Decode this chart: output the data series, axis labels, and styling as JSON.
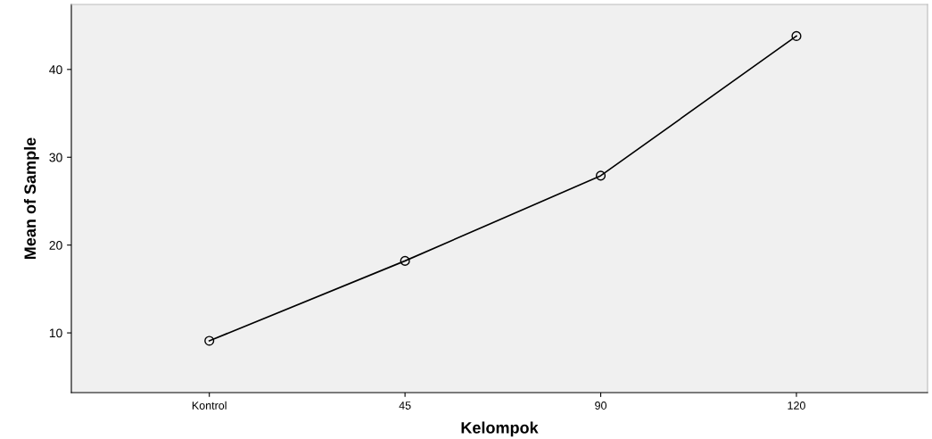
{
  "chart_data": {
    "type": "line",
    "xlabel": "Kelompok",
    "ylabel": "Mean of Sample",
    "categories": [
      "Kontrol",
      "45",
      "90",
      "120"
    ],
    "series": [
      {
        "color": "#000000",
        "values": [
          9.1,
          18.2,
          27.9,
          43.8
        ]
      }
    ],
    "ylim": [
      3.2,
      47.4
    ],
    "yticks": [
      10,
      20,
      30,
      40
    ],
    "marker": "circle",
    "line_style": "solid",
    "grid": false,
    "legend": false
  }
}
